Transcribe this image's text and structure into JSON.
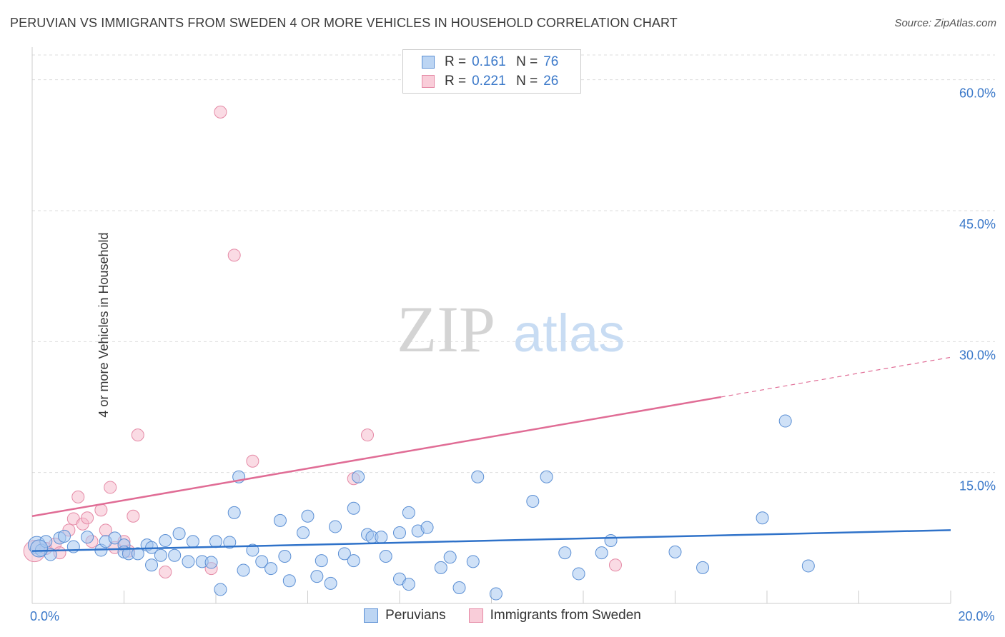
{
  "title": "PERUVIAN VS IMMIGRANTS FROM SWEDEN 4 OR MORE VEHICLES IN HOUSEHOLD CORRELATION CHART",
  "source": "Source: ZipAtlas.com",
  "watermark": {
    "zip": "ZIP",
    "atlas": "atlas"
  },
  "legend_top": {
    "rows": [
      {
        "r_label": "R =",
        "r_value": "0.161",
        "n_label": "N =",
        "n_value": "76"
      },
      {
        "r_label": "R =",
        "r_value": "0.221",
        "n_label": "N =",
        "n_value": "26"
      }
    ]
  },
  "colors": {
    "peruvians_fill": "#a8c8f0",
    "peruvians_stroke": "#5b8fd4",
    "peruvians_line": "#2f72c9",
    "sweden_fill": "#f5b8c9",
    "sweden_stroke": "#e58aa6",
    "sweden_line": "#e06c95",
    "grid": "#dddddd",
    "tick_label": "#3a78c9"
  },
  "chart_data": {
    "type": "scatter",
    "title": "PERUVIAN VS IMMIGRANTS FROM SWEDEN 4 OR MORE VEHICLES IN HOUSEHOLD CORRELATION CHART",
    "xlabel": "",
    "ylabel": "4 or more Vehicles in Household",
    "xlim": [
      0,
      20
    ],
    "ylim": [
      0,
      63
    ],
    "x_tick_labels": [
      {
        "value": 0,
        "label": "0.0%"
      },
      {
        "value": 20,
        "label": "20.0%"
      }
    ],
    "y_tick_labels": [
      {
        "value": 15,
        "label": "15.0%"
      },
      {
        "value": 30,
        "label": "30.0%"
      },
      {
        "value": 45,
        "label": "45.0%"
      },
      {
        "value": 60,
        "label": "60.0%"
      }
    ],
    "legend_position": "bottom",
    "series": [
      {
        "name": "Peruvians",
        "trend": {
          "x0": 0,
          "y0": 6.0,
          "x1": 20,
          "y1": 8.4
        },
        "points": [
          [
            0.1,
            6.7
          ],
          [
            0.2,
            6.1
          ],
          [
            0.3,
            7.1
          ],
          [
            0.4,
            5.6
          ],
          [
            0.6,
            7.5
          ],
          [
            0.7,
            7.7
          ],
          [
            0.9,
            6.5
          ],
          [
            1.2,
            7.6
          ],
          [
            1.5,
            6.1
          ],
          [
            1.6,
            7.1
          ],
          [
            1.8,
            7.5
          ],
          [
            2.0,
            6.7
          ],
          [
            2.0,
            5.9
          ],
          [
            2.1,
            5.7
          ],
          [
            2.3,
            5.7
          ],
          [
            2.5,
            6.7
          ],
          [
            2.6,
            6.4
          ],
          [
            2.6,
            4.4
          ],
          [
            2.8,
            5.5
          ],
          [
            2.9,
            7.2
          ],
          [
            3.1,
            5.5
          ],
          [
            3.2,
            8.0
          ],
          [
            3.4,
            4.8
          ],
          [
            3.5,
            7.1
          ],
          [
            3.7,
            4.8
          ],
          [
            3.9,
            4.7
          ],
          [
            4.0,
            7.1
          ],
          [
            4.1,
            1.6
          ],
          [
            4.3,
            7.0
          ],
          [
            4.4,
            10.4
          ],
          [
            4.5,
            14.5
          ],
          [
            4.6,
            3.8
          ],
          [
            4.8,
            6.1
          ],
          [
            5.0,
            4.8
          ],
          [
            5.2,
            4.0
          ],
          [
            5.4,
            9.5
          ],
          [
            5.5,
            5.4
          ],
          [
            5.6,
            2.6
          ],
          [
            5.9,
            8.1
          ],
          [
            6.0,
            10.0
          ],
          [
            6.2,
            3.1
          ],
          [
            6.3,
            4.9
          ],
          [
            6.5,
            2.3
          ],
          [
            6.6,
            8.8
          ],
          [
            6.8,
            5.7
          ],
          [
            7.0,
            4.9
          ],
          [
            7.0,
            10.9
          ],
          [
            7.1,
            14.5
          ],
          [
            7.3,
            7.9
          ],
          [
            7.4,
            7.6
          ],
          [
            7.6,
            7.6
          ],
          [
            7.7,
            5.4
          ],
          [
            8.0,
            2.8
          ],
          [
            8.0,
            8.1
          ],
          [
            8.2,
            2.2
          ],
          [
            8.2,
            10.4
          ],
          [
            8.4,
            8.3
          ],
          [
            8.6,
            8.7
          ],
          [
            8.9,
            4.1
          ],
          [
            9.1,
            5.3
          ],
          [
            9.3,
            1.8
          ],
          [
            9.6,
            4.8
          ],
          [
            9.7,
            14.5
          ],
          [
            10.1,
            1.1
          ],
          [
            10.9,
            11.7
          ],
          [
            11.2,
            14.5
          ],
          [
            11.6,
            5.8
          ],
          [
            11.9,
            3.4
          ],
          [
            12.4,
            5.8
          ],
          [
            12.6,
            7.2
          ],
          [
            14.0,
            5.9
          ],
          [
            14.6,
            4.1
          ],
          [
            15.9,
            9.8
          ],
          [
            16.4,
            20.9
          ],
          [
            16.9,
            4.3
          ],
          [
            0.15,
            6.3
          ]
        ]
      },
      {
        "name": "Immigrants from Sweden",
        "trend": {
          "x0": 0,
          "y0": 10.0,
          "x1": 20,
          "y1": 28.2,
          "solid_end_x": 15.0
        },
        "points": [
          [
            0.05,
            6.0
          ],
          [
            0.3,
            6.3
          ],
          [
            0.5,
            6.8
          ],
          [
            0.6,
            5.8
          ],
          [
            0.8,
            8.4
          ],
          [
            0.9,
            9.7
          ],
          [
            1.0,
            12.2
          ],
          [
            1.1,
            9.1
          ],
          [
            1.2,
            9.8
          ],
          [
            1.3,
            7.1
          ],
          [
            1.5,
            10.7
          ],
          [
            1.6,
            8.4
          ],
          [
            1.7,
            13.3
          ],
          [
            1.8,
            6.4
          ],
          [
            2.0,
            7.1
          ],
          [
            2.1,
            6.0
          ],
          [
            2.2,
            10.0
          ],
          [
            2.3,
            19.3
          ],
          [
            2.9,
            3.6
          ],
          [
            3.9,
            4.0
          ],
          [
            4.1,
            56.3
          ],
          [
            4.4,
            39.9
          ],
          [
            4.8,
            16.3
          ],
          [
            7.0,
            14.3
          ],
          [
            7.3,
            19.3
          ],
          [
            12.7,
            4.4
          ]
        ]
      }
    ]
  }
}
